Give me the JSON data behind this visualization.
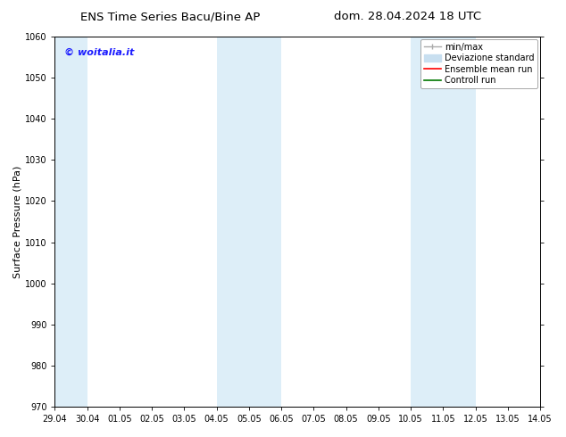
{
  "title_left": "ENS Time Series Bacu/Bine AP",
  "title_right": "dom. 28.04.2024 18 UTC",
  "ylabel": "Surface Pressure (hPa)",
  "ylim": [
    970,
    1060
  ],
  "yticks": [
    970,
    980,
    990,
    1000,
    1010,
    1020,
    1030,
    1040,
    1050,
    1060
  ],
  "xlabels": [
    "29.04",
    "30.04",
    "01.05",
    "02.05",
    "03.05",
    "04.05",
    "05.05",
    "06.05",
    "07.05",
    "08.05",
    "09.05",
    "10.05",
    "11.05",
    "12.05",
    "13.05",
    "14.05"
  ],
  "shaded_regions": [
    {
      "xstart": 0,
      "xend": 1,
      "color": "#ddeef8"
    },
    {
      "xstart": 5,
      "xend": 7,
      "color": "#ddeef8"
    },
    {
      "xstart": 11,
      "xend": 13,
      "color": "#ddeef8"
    }
  ],
  "copyright_text": "© woitalia.it",
  "copyright_color": "#1a1aff",
  "background_color": "#ffffff",
  "legend_items": [
    {
      "label": "min/max",
      "color": "#aaaaaa"
    },
    {
      "label": "Deviazione standard",
      "color": "#c8dff0"
    },
    {
      "label": "Ensemble mean run",
      "color": "#ff0000"
    },
    {
      "label": "Controll run",
      "color": "#007700"
    }
  ],
  "title_fontsize": 9.5,
  "tick_fontsize": 7,
  "ylabel_fontsize": 8,
  "legend_fontsize": 7,
  "copyright_fontsize": 8,
  "fig_width": 6.34,
  "fig_height": 4.9,
  "dpi": 100
}
